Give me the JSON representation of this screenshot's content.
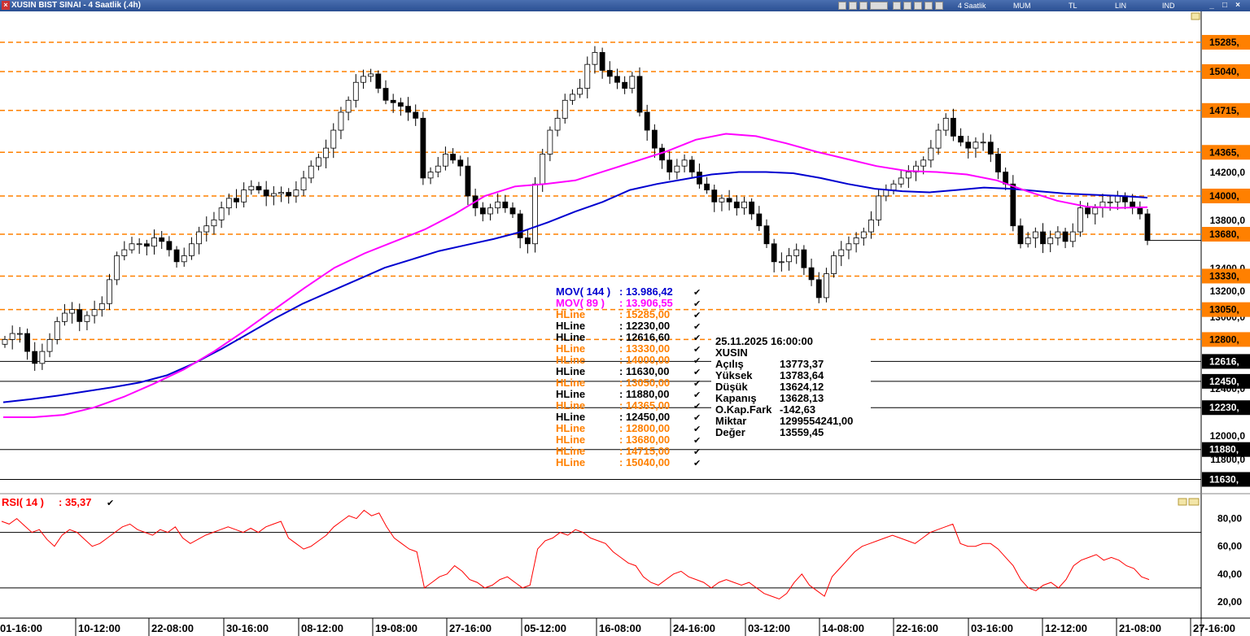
{
  "window": {
    "title": "XUSIN BIST SINAI - 4 Saatlik (.4h)",
    "toolbar": [
      "4 Saatlik",
      "MUM",
      "TL",
      "LIN",
      "IND"
    ]
  },
  "chart_data": {
    "type": "candlestick",
    "symbol": "XUSIN",
    "y_axis": {
      "range": [
        11500,
        15400
      ],
      "tick_labels": [
        "14200,0",
        "13800,0",
        "13400,0",
        "13200,0",
        "13000,0",
        "12400,0",
        "12000,0",
        "11800,0"
      ]
    },
    "x_axis_labels": [
      "01-16:00",
      "10-12:00",
      "22-08:00",
      "30-16:00",
      "08-12:00",
      "19-08:00",
      "27-16:00",
      "05-12:00",
      "16-08:00",
      "24-16:00",
      "03-12:00",
      "14-08:00",
      "22-16:00",
      "03-16:00",
      "12-12:00",
      "21-08:00",
      "27-16:00"
    ],
    "close_series": [
      12800,
      12850,
      12850,
      12700,
      12600,
      12700,
      12800,
      12950,
      13020,
      13050,
      12950,
      13000,
      13050,
      13100,
      13300,
      13500,
      13550,
      13600,
      13600,
      13580,
      13650,
      13620,
      13550,
      13450,
      13500,
      13600,
      13700,
      13750,
      13800,
      13900,
      13980,
      13950,
      14050,
      14080,
      14050,
      14000,
      14020,
      14030,
      14000,
      14050,
      14150,
      14250,
      14320,
      14400,
      14550,
      14700,
      14800,
      14950,
      15000,
      15020,
      14900,
      14800,
      14780,
      14750,
      14700,
      14650,
      14150,
      14200,
      14250,
      14350,
      14300,
      14250,
      14000,
      13900,
      13850,
      13900,
      13950,
      13900,
      13850,
      13650,
      13600,
      14100,
      14350,
      14550,
      14650,
      14800,
      14850,
      14900,
      15100,
      15200,
      15050,
      15000,
      14950,
      14900,
      15000,
      14700,
      14550,
      14400,
      14300,
      14200,
      14250,
      14300,
      14200,
      14100,
      14050,
      13950,
      13980,
      13950,
      13900,
      13950,
      13850,
      13750,
      13600,
      13450,
      13450,
      13500,
      13550,
      13400,
      13300,
      13150,
      13350,
      13500,
      13550,
      13600,
      13650,
      13700,
      13800,
      14000,
      14050,
      14100,
      14150,
      14200,
      14250,
      14300,
      14400,
      14550,
      14650,
      14500,
      14450,
      14400,
      14450,
      14450,
      14350,
      14200,
      14100,
      13750,
      13600,
      13650,
      13700,
      13600,
      13650,
      13700,
      13620,
      13700,
      13900,
      13850,
      13900,
      13950,
      13950,
      14000,
      13950,
      13900,
      13850,
      13628
    ],
    "moving_averages": [
      {
        "label": "MOV( 144 )",
        "value": "13.986,42",
        "color": "#0000d0",
        "values": [
          12275,
          12300,
          12330,
          12365,
          12400,
          12440,
          12500,
          12600,
          12720,
          12850,
          12980,
          13100,
          13200,
          13300,
          13400,
          13470,
          13540,
          13590,
          13640,
          13700,
          13780,
          13870,
          13950,
          14050,
          14100,
          14140,
          14180,
          14200,
          14200,
          14190,
          14150,
          14100,
          14060,
          14040,
          14030,
          14050,
          14070,
          14060,
          14040,
          14020,
          14010,
          14000,
          13986
        ]
      },
      {
        "label": "MOV( 89 )",
        "value": "13.906,55",
        "color": "#ff00ff",
        "values": [
          12150,
          12150,
          12170,
          12230,
          12320,
          12430,
          12550,
          12700,
          12870,
          13050,
          13230,
          13400,
          13520,
          13620,
          13720,
          13850,
          14000,
          14080,
          14100,
          14130,
          14210,
          14290,
          14370,
          14470,
          14520,
          14500,
          14440,
          14370,
          14310,
          14250,
          14210,
          14200,
          14180,
          14130,
          14040,
          13960,
          13910,
          13900,
          13906
        ]
      }
    ],
    "hlines": [
      {
        "label": "HLine",
        "value": "15285,00",
        "tag": "15285,",
        "level": 15285,
        "style": "dashed"
      },
      {
        "label": "HLine",
        "value": "12230,00",
        "tag": "12230,",
        "level": 12230,
        "style": "solid"
      },
      {
        "label": "HLine",
        "value": "12616,60",
        "tag": "12616,",
        "level": 12616.6,
        "style": "solid"
      },
      {
        "label": "HLine",
        "value": "13330,00",
        "tag": "13330,",
        "level": 13330,
        "style": "dashed"
      },
      {
        "label": "HLine",
        "value": "14000,00",
        "tag": "14000,",
        "level": 14000,
        "style": "dashed"
      },
      {
        "label": "HLine",
        "value": "11630,00",
        "tag": "11630,",
        "level": 11630,
        "style": "solid"
      },
      {
        "label": "HLine",
        "value": "13050,00",
        "tag": "13050,",
        "level": 13050,
        "style": "dashed"
      },
      {
        "label": "HLine",
        "value": "11880,00",
        "tag": "11880,",
        "level": 11880,
        "style": "solid"
      },
      {
        "label": "HLine",
        "value": "14365,00",
        "tag": "14365,",
        "level": 14365,
        "style": "dashed"
      },
      {
        "label": "HLine",
        "value": "12450,00",
        "tag": "12450,",
        "level": 12450,
        "style": "solid"
      },
      {
        "label": "HLine",
        "value": "12800,00",
        "tag": "12800,",
        "level": 12800,
        "style": "dashed"
      },
      {
        "label": "HLine",
        "value": "13680,00",
        "tag": "13680,",
        "level": 13680,
        "style": "dashed"
      },
      {
        "label": "HLine",
        "value": "14715,00",
        "tag": "14715,",
        "level": 14715,
        "style": "dashed"
      },
      {
        "label": "HLine",
        "value": "15040,00",
        "tag": "15040,",
        "level": 15040,
        "style": "dashed"
      }
    ],
    "colors": {
      "dashed_line": "#ff8000",
      "solid_line": "#000000",
      "price_tag": "#000000"
    },
    "info_box": {
      "datetime": "25.11.2025  16:00:00",
      "symbol": "XUSIN",
      "rows": [
        {
          "label": "Açılış",
          "value": "13773,37"
        },
        {
          "label": "Yüksek",
          "value": "13783,64"
        },
        {
          "label": "Düşük",
          "value": "13624,12"
        },
        {
          "label": "Kapanış",
          "value": "13628,13"
        },
        {
          "label": "O.Kap.Fark",
          "value": "-142,63"
        },
        {
          "label": "Miktar",
          "value": "1299554241,00"
        },
        {
          "label": "Değer",
          "value": "13559,45"
        }
      ]
    },
    "rsi": {
      "label": "RSI( 14 )",
      "value": ": 35,37",
      "color": "#ff0000",
      "range": [
        10,
        95
      ],
      "reference_levels": [
        70,
        30
      ],
      "tick_labels": [
        "80,00",
        "60,00",
        "40,00",
        "20,00"
      ],
      "values": [
        78,
        76,
        80,
        75,
        70,
        72,
        65,
        60,
        68,
        72,
        70,
        65,
        60,
        62,
        66,
        70,
        74,
        76,
        72,
        70,
        68,
        72,
        70,
        74,
        66,
        62,
        65,
        68,
        70,
        72,
        74,
        72,
        70,
        73,
        70,
        74,
        76,
        78,
        66,
        62,
        58,
        60,
        64,
        68,
        74,
        78,
        82,
        80,
        86,
        82,
        84,
        74,
        66,
        62,
        58,
        56,
        30,
        34,
        38,
        40,
        46,
        42,
        36,
        34,
        30,
        32,
        36,
        38,
        34,
        30,
        32,
        58,
        64,
        66,
        70,
        68,
        72,
        70,
        66,
        64,
        62,
        56,
        52,
        48,
        46,
        38,
        34,
        32,
        36,
        40,
        42,
        38,
        36,
        34,
        30,
        34,
        36,
        34,
        32,
        34,
        30,
        26,
        24,
        22,
        26,
        34,
        40,
        32,
        28,
        24,
        38,
        44,
        50,
        56,
        60,
        62,
        64,
        66,
        68,
        66,
        64,
        62,
        66,
        70,
        72,
        74,
        76,
        62,
        60,
        60,
        62,
        62,
        58,
        52,
        46,
        36,
        30,
        28,
        32,
        34,
        30,
        36,
        46,
        50,
        52,
        54,
        50,
        52,
        50,
        46,
        44,
        38,
        36
      ]
    }
  }
}
